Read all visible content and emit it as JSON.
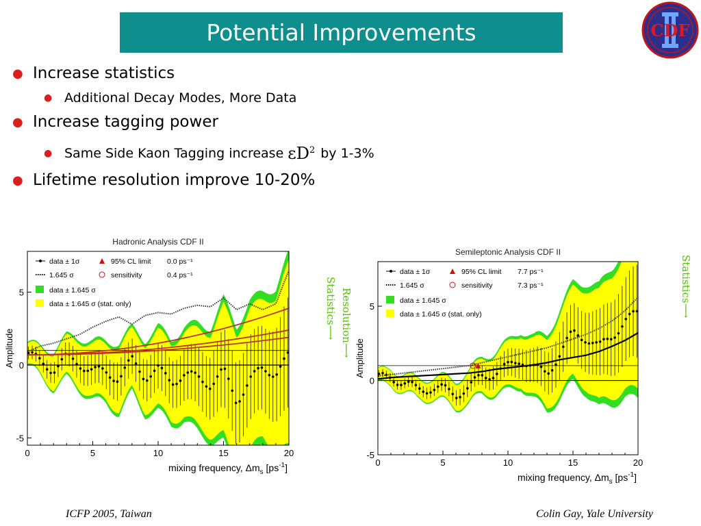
{
  "slide": {
    "title": "Potential Improvements",
    "logo_text": "CDF",
    "bullets": [
      {
        "text": "Increase statistics"
      },
      {
        "text": "Additional Decay Modes,  More Data"
      },
      {
        "text": "Increase tagging power"
      },
      {
        "text": "Same Side Kaon Tagging increase",
        "symbol": "εD",
        "sup": "2",
        "suffix": "by 1-3%"
      },
      {
        "text": "Lifetime resolution improve 10-20%"
      }
    ],
    "footer_left": "ICFP 2005, Taiwan",
    "footer_right": "Colin Gay, Yale University",
    "side_labels": {
      "left_statistics": "Statistics",
      "left_resolution": "Resolution",
      "right_statistics": "Statistics"
    },
    "colors": {
      "title_bg": "#0e8f8d",
      "bullet": "#d9201c",
      "band_yellow": "#ffff00",
      "band_green": "#33dd22",
      "label_green": "#55c400"
    }
  },
  "chart_data": [
    {
      "type": "line",
      "title": "Hadronic Analysis CDF II",
      "xlabel": "mixing frequency, Δm",
      "xlabel_sub": "s",
      "xlabel_unit": "[ps",
      "xlabel_unit_sup": "-1",
      "xlabel_close": "]",
      "ylabel": "Amplitude",
      "xlim": [
        0,
        20
      ],
      "ylim": [
        -5.5,
        7.8
      ],
      "xticks": [
        "0",
        "5",
        "10",
        "15",
        "20"
      ],
      "yticks": [
        "-5",
        "0",
        "5"
      ],
      "legend": [
        {
          "marker": "point",
          "label": "data ± 1σ"
        },
        {
          "marker": "dotted",
          "label": "1.645 σ"
        },
        {
          "marker": "triangle",
          "label": "95% CL limit",
          "value": "0.0 ps⁻¹"
        },
        {
          "marker": "circle",
          "label": "sensitivity",
          "value": "0.4 ps⁻¹"
        },
        {
          "marker": "green-box",
          "label": "data ± 1.645 σ"
        },
        {
          "marker": "yellow-box",
          "label": "data ± 1.645 σ (stat. only)"
        }
      ],
      "x": [
        0,
        1,
        2,
        3,
        4,
        5,
        6,
        7,
        8,
        9,
        10,
        11,
        12,
        13,
        14,
        15,
        16,
        17,
        18,
        19,
        20
      ],
      "series": [
        {
          "name": "data",
          "values": [
            0.8,
            0.2,
            -0.3,
            0.5,
            0.1,
            -0.4,
            -0.5,
            -0.9,
            0.3,
            -0.8,
            -0.3,
            -1.2,
            -0.6,
            -0.9,
            -1.3,
            -0.4,
            -2.5,
            -1.0,
            -0.3,
            -0.5,
            0.6
          ]
        },
        {
          "name": "sigma_1645",
          "values": [
            0.9,
            1.3,
            1.5,
            1.8,
            2.1,
            2.6,
            3.0,
            3.3,
            2.8,
            3.4,
            3.6,
            3.5,
            3.9,
            4.1,
            4.0,
            4.6,
            3.8,
            4.2,
            3.8,
            4.2,
            6.5
          ]
        },
        {
          "name": "band_halfwidth",
          "values": [
            0.7,
            0.9,
            1.2,
            1.3,
            1.6,
            1.8,
            1.9,
            2.2,
            2.0,
            2.3,
            2.6,
            2.6,
            2.9,
            3.3,
            3.5,
            4.4,
            4.6,
            4.8,
            4.7,
            5.2,
            6.3
          ]
        }
      ]
    },
    {
      "type": "line",
      "title": "Semileptonic Analysis CDF II",
      "xlabel": "mixing frequency, Δm",
      "xlabel_sub": "s",
      "xlabel_unit": "[ps",
      "xlabel_unit_sup": "-1",
      "xlabel_close": "]",
      "ylabel": "Amplitude",
      "xlim": [
        0,
        20
      ],
      "ylim": [
        -5,
        8
      ],
      "xticks": [
        "0",
        "5",
        "10",
        "15",
        "20"
      ],
      "yticks": [
        "-5",
        "0",
        "5"
      ],
      "legend": [
        {
          "marker": "point",
          "label": "data ± 1σ"
        },
        {
          "marker": "dotted",
          "label": "1.645 σ"
        },
        {
          "marker": "triangle",
          "label": "95% CL limit",
          "value": "7.7 ps⁻¹"
        },
        {
          "marker": "circle",
          "label": "sensitivity",
          "value": "7.3 ps⁻¹"
        },
        {
          "marker": "green-box",
          "label": "data ± 1.645 σ"
        },
        {
          "marker": "yellow-box",
          "label": "data ± 1.645 σ (stat. only)"
        }
      ],
      "x": [
        0,
        1,
        2,
        3,
        4,
        5,
        6,
        7,
        8,
        9,
        10,
        11,
        12,
        13,
        14,
        15,
        16,
        17,
        18,
        19,
        20
      ],
      "series": [
        {
          "name": "data",
          "values": [
            0.1,
            0.3,
            -0.2,
            -0.6,
            -0.5,
            -0.6,
            -0.9,
            -0.5,
            0.3,
            0.5,
            0.9,
            1.5,
            0.8,
            0.5,
            1.8,
            3.2,
            2.9,
            2.2,
            3.0,
            4.0,
            4.5
          ]
        },
        {
          "name": "sigma_1645",
          "values": [
            0.3,
            0.4,
            0.5,
            0.6,
            0.7,
            0.8,
            0.9,
            1.0,
            1.2,
            1.4,
            1.6,
            1.8,
            2.0,
            2.2,
            2.5,
            2.8,
            3.1,
            3.5,
            4.0,
            4.7,
            5.6
          ]
        },
        {
          "name": "sigma_1",
          "values": [
            0.1,
            0.2,
            0.25,
            0.3,
            0.35,
            0.4,
            0.45,
            0.5,
            0.6,
            0.75,
            0.85,
            0.95,
            1.05,
            1.2,
            1.4,
            1.55,
            1.7,
            1.95,
            2.3,
            2.7,
            3.2
          ]
        },
        {
          "name": "band_halfwidth",
          "values": [
            0.4,
            0.5,
            0.55,
            0.6,
            0.65,
            0.75,
            0.85,
            1.0,
            1.1,
            1.3,
            1.5,
            1.7,
            1.9,
            2.3,
            2.7,
            3.0,
            3.3,
            3.7,
            4.1,
            4.6,
            5.2
          ]
        }
      ],
      "limit_marker_x": 7.7,
      "sensitivity_marker_x": 7.3
    }
  ]
}
